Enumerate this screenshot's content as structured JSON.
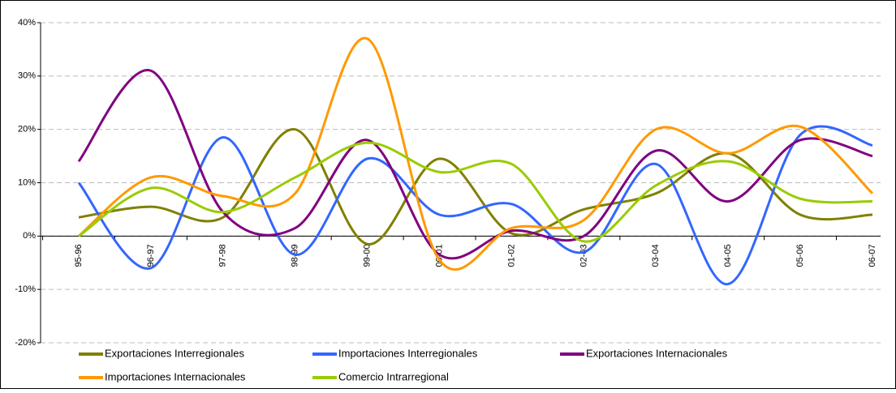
{
  "chart_data": {
    "type": "line",
    "categories": [
      "95-96",
      "96-97",
      "97-98",
      "98-99",
      "99-00",
      "00-01",
      "01-02",
      "02-03",
      "03-04",
      "04-05",
      "05-06",
      "06-07"
    ],
    "series": [
      {
        "name": "Exportaciones Interregionales",
        "color": "#808000",
        "values": [
          3.5,
          5.5,
          3.5,
          20,
          -1.5,
          14.5,
          0.5,
          5,
          8,
          15.5,
          4,
          4
        ]
      },
      {
        "name": "Importaciones Interregionales",
        "color": "#3366ff",
        "values": [
          10,
          -6,
          18.5,
          -3.5,
          14.5,
          4,
          6,
          -3,
          13.5,
          -9,
          19,
          17
        ]
      },
      {
        "name": "Exportaciones Internacionales",
        "color": "#800080",
        "values": [
          14,
          31,
          4.5,
          1.5,
          18,
          -3.5,
          1,
          0,
          16,
          6.5,
          18,
          15
        ]
      },
      {
        "name": "Importaciones Internacionales",
        "color": "#ff9900",
        "values": [
          0,
          11,
          7.5,
          8,
          37,
          -4.5,
          1.5,
          3,
          20,
          15.5,
          20.5,
          8
        ]
      },
      {
        "name": "Comercio Intrarregional",
        "color": "#99cc00",
        "values": [
          0,
          9,
          4.5,
          11,
          17.5,
          12,
          13.5,
          -1,
          9.5,
          14,
          7,
          6.5
        ]
      }
    ],
    "ylim": [
      -20,
      40
    ],
    "yticks": [
      {
        "value": -20,
        "label": "-20%"
      },
      {
        "value": -10,
        "label": "-10%"
      },
      {
        "value": 0,
        "label": "0%"
      },
      {
        "value": 10,
        "label": "10%"
      },
      {
        "value": 20,
        "label": "20%"
      },
      {
        "value": 30,
        "label": "30%"
      },
      {
        "value": 40,
        "label": "40%"
      }
    ],
    "grid": true,
    "legend": "bottom"
  }
}
